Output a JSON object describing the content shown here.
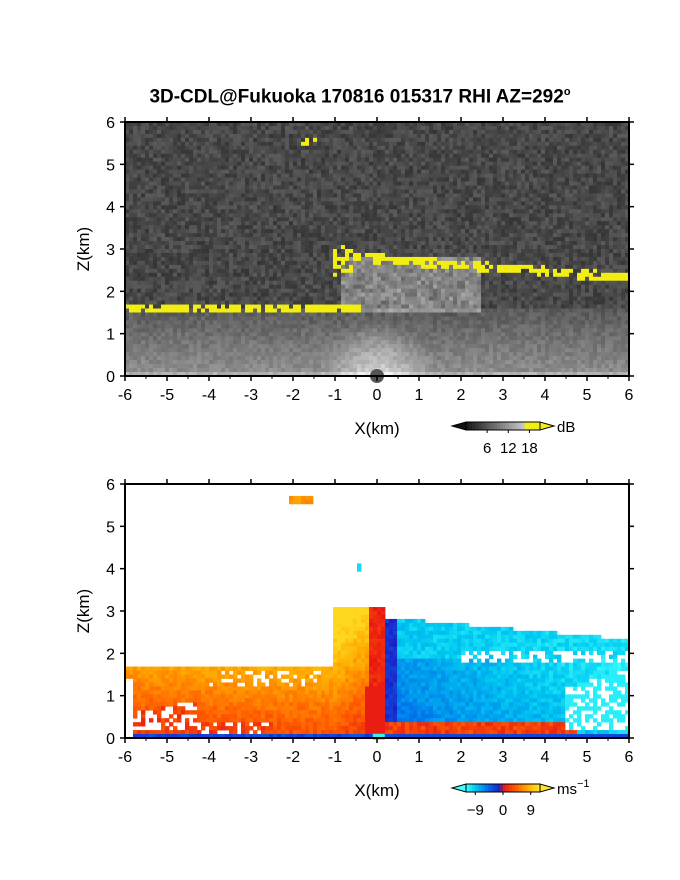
{
  "title": "3D-CDL@Fukuoka 170816 015317 RHI AZ=292",
  "title_degree": "o",
  "chart_data": [
    {
      "type": "heatmap",
      "quantity": "reflectivity",
      "xlabel": "X(km)",
      "ylabel": "Z(km)",
      "xlim": [
        -6,
        6
      ],
      "ylim": [
        0,
        6
      ],
      "xticks": [
        "-6",
        "-5",
        "-4",
        "-3",
        "-2",
        "-1",
        "0",
        "1",
        "2",
        "3",
        "4",
        "5",
        "6"
      ],
      "yticks": [
        "0",
        "1",
        "2",
        "3",
        "4",
        "5",
        "6"
      ],
      "colorbar": {
        "unit": "dB",
        "ticks": [
          "6",
          "12",
          "18"
        ],
        "range": [
          0,
          21
        ]
      },
      "features": [
        {
          "x": [
            -6,
            -0.5
          ],
          "z": [
            1.55,
            1.7
          ],
          "value": 18
        },
        {
          "x": [
            -1.0,
            6.0
          ],
          "z": [
            2.3,
            2.9
          ],
          "value": 18
        },
        {
          "x": [
            -1.8,
            -1.4
          ],
          "z": [
            5.5,
            5.65
          ],
          "value": 15
        }
      ]
    },
    {
      "type": "heatmap",
      "quantity": "doppler_velocity",
      "xlabel": "X(km)",
      "ylabel": "Z(km)",
      "xlim": [
        -6,
        6
      ],
      "ylim": [
        0,
        6
      ],
      "xticks": [
        "-6",
        "-5",
        "-4",
        "-3",
        "-2",
        "-1",
        "0",
        "1",
        "2",
        "3",
        "4",
        "5",
        "6"
      ],
      "yticks": [
        "0",
        "1",
        "2",
        "3",
        "4",
        "5",
        "6"
      ],
      "colorbar": {
        "unit": "ms",
        "unit_exponent": "−1",
        "ticks": [
          "−9",
          "0",
          "9"
        ],
        "range": [
          -12,
          12
        ]
      },
      "features": [
        {
          "x": [
            -6,
            0.1
          ],
          "z": [
            0,
            1.7
          ],
          "value": 6
        },
        {
          "x": [
            -1.0,
            0.1
          ],
          "z": [
            1.0,
            3.0
          ],
          "value": 3
        },
        {
          "x": [
            0.2,
            6.0
          ],
          "z": [
            0,
            2.9
          ],
          "value": -8
        },
        {
          "x": [
            -2.1,
            -1.5
          ],
          "z": [
            5.55,
            5.7
          ],
          "value": 7
        }
      ]
    }
  ]
}
